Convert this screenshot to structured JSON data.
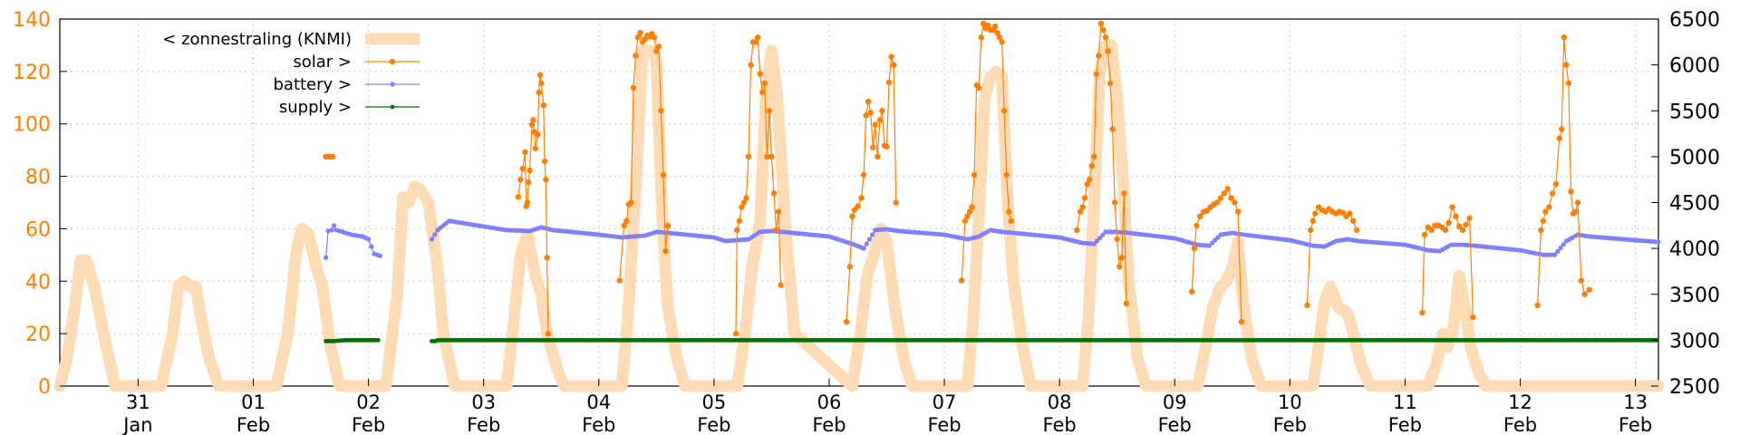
{
  "chart_data": {
    "type": "line",
    "title": "",
    "xlabel": "",
    "ylabel": "",
    "x_unit": "day",
    "xlim": [
      -0.68,
      13.2
    ],
    "ylim_left": [
      0,
      140
    ],
    "ylim_right": [
      2500,
      6500
    ],
    "left_ticks": [
      0,
      20,
      40,
      60,
      80,
      100,
      120,
      140
    ],
    "right_ticks": [
      2500,
      3000,
      3500,
      4000,
      4500,
      5000,
      5500,
      6000,
      6500
    ],
    "x_ticks": [
      {
        "pos": 0,
        "day": "31",
        "month": "Jan"
      },
      {
        "pos": 1,
        "day": "01",
        "month": "Feb"
      },
      {
        "pos": 2,
        "day": "02",
        "month": "Feb"
      },
      {
        "pos": 3,
        "day": "03",
        "month": "Feb"
      },
      {
        "pos": 4,
        "day": "04",
        "month": "Feb"
      },
      {
        "pos": 5,
        "day": "05",
        "month": "Feb"
      },
      {
        "pos": 6,
        "day": "06",
        "month": "Feb"
      },
      {
        "pos": 7,
        "day": "07",
        "month": "Feb"
      },
      {
        "pos": 8,
        "day": "08",
        "month": "Feb"
      },
      {
        "pos": 9,
        "day": "09",
        "month": "Feb"
      },
      {
        "pos": 10,
        "day": "10",
        "month": "Feb"
      },
      {
        "pos": 11,
        "day": "11",
        "month": "Feb"
      },
      {
        "pos": 12,
        "day": "12",
        "month": "Feb"
      },
      {
        "pos": 13,
        "day": "13",
        "month": "Feb"
      }
    ],
    "grid": true,
    "legend_position": "top-left",
    "colors": {
      "left_axis": "#ff7f00",
      "zonnestraling": "#ffdbb5",
      "solar": "#ff8000",
      "battery": "#7f7fff",
      "supply": "#007000"
    },
    "series": [
      {
        "name": "< zonnestraling (KNMI)",
        "axis": "left",
        "style": "thick-line",
        "x": [
          -0.68,
          -0.62,
          -0.55,
          -0.5,
          -0.45,
          -0.38,
          -0.3,
          -0.2,
          0.2,
          0.3,
          0.35,
          0.4,
          0.45,
          0.5,
          0.55,
          0.62,
          0.7,
          0.8,
          1.2,
          1.3,
          1.37,
          1.42,
          1.48,
          1.55,
          1.6,
          1.67,
          1.75,
          1.85,
          2.15,
          2.25,
          2.3,
          2.35,
          2.4,
          2.45,
          2.52,
          2.6,
          2.65,
          2.75,
          3.2,
          3.25,
          3.32,
          3.38,
          3.45,
          3.5,
          3.55,
          3.65,
          3.7,
          4.2,
          4.25,
          4.32,
          4.38,
          4.45,
          4.5,
          4.55,
          4.6,
          4.68,
          4.75,
          5.2,
          5.27,
          5.33,
          5.4,
          5.45,
          5.5,
          5.55,
          5.62,
          5.7,
          6.2,
          6.27,
          6.33,
          6.4,
          6.45,
          6.5,
          6.57,
          6.65,
          6.72,
          7.2,
          7.25,
          7.3,
          7.35,
          7.4,
          7.45,
          7.5,
          7.55,
          7.6,
          7.68,
          7.75,
          8.2,
          8.25,
          8.3,
          8.35,
          8.4,
          8.45,
          8.5,
          8.55,
          8.6,
          8.68,
          8.75,
          9.2,
          9.27,
          9.33,
          9.4,
          9.45,
          9.5,
          9.55,
          9.6,
          9.67,
          9.75,
          10.2,
          10.25,
          10.3,
          10.35,
          10.42,
          10.5,
          10.55,
          10.62,
          10.7,
          11.2,
          11.27,
          11.33,
          11.37,
          11.42,
          11.47,
          11.52,
          11.57,
          11.64,
          11.7,
          12.2,
          12.3,
          13.2
        ],
        "values": [
          0,
          10,
          30,
          48,
          48,
          38,
          20,
          0,
          0,
          20,
          38,
          40,
          38,
          38,
          25,
          10,
          0,
          0,
          0,
          20,
          50,
          60,
          58,
          45,
          38,
          15,
          0,
          0,
          0,
          35,
          72,
          70,
          76,
          75,
          70,
          45,
          20,
          0,
          0,
          20,
          50,
          58,
          42,
          35,
          20,
          5,
          0,
          0,
          25,
          75,
          128,
          128,
          125,
          65,
          30,
          10,
          0,
          0,
          20,
          45,
          62,
          110,
          128,
          110,
          60,
          20,
          0,
          20,
          42,
          52,
          60,
          55,
          30,
          10,
          0,
          0,
          25,
          65,
          110,
          118,
          120,
          118,
          70,
          40,
          15,
          0,
          0,
          25,
          70,
          120,
          130,
          130,
          110,
          80,
          40,
          10,
          0,
          0,
          15,
          30,
          38,
          40,
          45,
          55,
          30,
          10,
          0,
          0,
          15,
          32,
          38,
          30,
          28,
          20,
          8,
          0,
          0,
          8,
          20,
          15,
          22,
          42,
          30,
          15,
          5,
          0,
          0,
          0,
          0
        ]
      },
      {
        "name": "solar >",
        "axis": "right",
        "style": "line-points",
        "segments": [
          {
            "x": [
              1.63,
              1.66,
              1.69
            ],
            "values": [
              5000,
              5000,
              5000
            ]
          },
          {
            "x": [
              3.3,
              3.32,
              3.34,
              3.36,
              3.37,
              3.38,
              3.39,
              3.4,
              3.42,
              3.43,
              3.44,
              3.45,
              3.47,
              3.48,
              3.49,
              3.5,
              3.52,
              3.53,
              3.54,
              3.55,
              3.56
            ],
            "values": [
              4560,
              4750,
              4870,
              5050,
              4460,
              4500,
              4720,
              4850,
              5350,
              5400,
              5270,
              5090,
              5240,
              5700,
              5890,
              5800,
              5560,
              4950,
              4750,
              3900,
              3070
            ]
          },
          {
            "x": [
              4.18,
              4.22,
              4.24,
              4.26,
              4.28,
              4.3,
              4.32,
              4.34,
              4.36,
              4.38,
              4.4,
              4.42,
              4.44,
              4.46,
              4.48,
              4.5,
              4.52,
              4.54,
              4.56,
              4.58,
              4.6
            ],
            "values": [
              3650,
              4250,
              4300,
              4480,
              4500,
              5750,
              6100,
              6300,
              6350,
              6250,
              6280,
              6320,
              6310,
              6340,
              6300,
              6150,
              6200,
              5500,
              4800,
              3970,
              4250
            ]
          },
          {
            "x": [
              5.19,
              5.2,
              5.22,
              5.24,
              5.26,
              5.28,
              5.3,
              5.32,
              5.34,
              5.36,
              5.38,
              5.4,
              5.42,
              5.44,
              5.46,
              5.48,
              5.5,
              5.52,
              5.54,
              5.56,
              5.58
            ],
            "values": [
              3070,
              4200,
              4300,
              4450,
              4500,
              4550,
              5000,
              6000,
              6250,
              6250,
              6300,
              5900,
              5700,
              5800,
              5000,
              5500,
              5000,
              4600,
              4200,
              4400,
              3600
            ]
          },
          {
            "x": [
              6.15,
              6.18,
              6.2,
              6.22,
              6.25,
              6.28,
              6.3,
              6.32,
              6.34,
              6.36,
              6.38,
              6.4,
              6.42,
              6.44,
              6.46,
              6.48,
              6.5,
              6.52,
              6.54,
              6.56,
              6.58
            ],
            "values": [
              3200,
              3800,
              4350,
              4420,
              4460,
              4550,
              4800,
              5450,
              5600,
              5480,
              5100,
              5350,
              5000,
              5400,
              5500,
              5120,
              5110,
              5810,
              6090,
              6000,
              4500
            ]
          },
          {
            "x": [
              7.15,
              7.18,
              7.2,
              7.22,
              7.24,
              7.26,
              7.28,
              7.3,
              7.32,
              7.34,
              7.36,
              7.38,
              7.4,
              7.42,
              7.44,
              7.46,
              7.48,
              7.5,
              7.52,
              7.54,
              7.56,
              7.58
            ],
            "values": [
              3650,
              4300,
              4350,
              4400,
              4450,
              4800,
              5780,
              5750,
              6300,
              6450,
              6400,
              6430,
              6380,
              6380,
              6420,
              6350,
              6300,
              6250,
              5500,
              4800,
              4400,
              4300
            ]
          },
          {
            "x": [
              8.15,
              8.18,
              8.2,
              8.22,
              8.24,
              8.26,
              8.28,
              8.3,
              8.32,
              8.34,
              8.36,
              8.38,
              8.4,
              8.42,
              8.44,
              8.46,
              8.48,
              8.5,
              8.52,
              8.54,
              8.56,
              8.58
            ],
            "values": [
              4200,
              4400,
              4450,
              4550,
              4700,
              4750,
              4900,
              5000,
              5900,
              6100,
              6450,
              6380,
              6300,
              6150,
              5800,
              5300,
              4500,
              4100,
              3800,
              3900,
              4600,
              3400
            ]
          },
          {
            "x": [
              9.15,
              9.17,
              9.19,
              9.22,
              9.25,
              9.28,
              9.31,
              9.34,
              9.37,
              9.4,
              9.43,
              9.46,
              9.49,
              9.52,
              9.55,
              9.58
            ],
            "values": [
              3530,
              4000,
              4250,
              4350,
              4400,
              4410,
              4450,
              4480,
              4500,
              4550,
              4600,
              4650,
              4550,
              4500,
              4400,
              3200
            ]
          },
          {
            "x": [
              10.15,
              10.18,
              10.2,
              10.22,
              10.25,
              10.28,
              10.31,
              10.34,
              10.37,
              10.4,
              10.43,
              10.46,
              10.49,
              10.52,
              10.55,
              10.58
            ],
            "values": [
              3380,
              4200,
              4300,
              4380,
              4450,
              4420,
              4400,
              4430,
              4400,
              4380,
              4400,
              4390,
              4350,
              4380,
              4300,
              4200
            ]
          },
          {
            "x": [
              11.15,
              11.17,
              11.2,
              11.23,
              11.26,
              11.29,
              11.32,
              11.35,
              11.38,
              11.41,
              11.44,
              11.47,
              11.5,
              11.53,
              11.56,
              11.59
            ],
            "values": [
              3300,
              4150,
              4230,
              4200,
              4250,
              4250,
              4230,
              4200,
              4280,
              4450,
              4350,
              4240,
              4200,
              4260,
              4330,
              3250
            ]
          },
          {
            "x": [
              12.15,
              12.18,
              12.2,
              12.22,
              12.25,
              12.28,
              12.31,
              12.34,
              12.36,
              12.38,
              12.4,
              12.42,
              12.44,
              12.46,
              12.48,
              12.5,
              12.53,
              12.56,
              12.6
            ],
            "values": [
              3380,
              4200,
              4300,
              4400,
              4450,
              4600,
              4700,
              5200,
              5300,
              6300,
              6000,
              5800,
              4620,
              4380,
              4400,
              4500,
              3650,
              3500,
              3550
            ]
          }
        ]
      },
      {
        "name": "battery >",
        "axis": "right",
        "style": "line-points",
        "segments": [
          {
            "x": [
              1.63,
              1.65,
              1.68,
              1.7,
              1.72,
              1.75,
              1.8,
              1.85,
              1.9,
              1.95,
              2.0,
              2.05,
              2.1
            ],
            "values": [
              3900,
              4190,
              4200,
              4250,
              4200,
              4190,
              4170,
              4150,
              4140,
              4130,
              4100,
              3940,
              3920
            ]
          },
          {
            "x": [
              2.55,
              2.6,
              2.65,
              2.7,
              3.0,
              3.2,
              3.4,
              3.5,
              3.6,
              4.0,
              4.2,
              4.4,
              4.5,
              4.6,
              5.0,
              5.1,
              5.3,
              5.4,
              5.5,
              5.6,
              6.0,
              6.2,
              6.3,
              6.4,
              6.5,
              6.6,
              7.0,
              7.2,
              7.3,
              7.4,
              7.5,
              7.6,
              8.0,
              8.2,
              8.3,
              8.4,
              8.5,
              8.6,
              9.0,
              9.2,
              9.3,
              9.4,
              9.5,
              9.6,
              10.0,
              10.2,
              10.3,
              10.4,
              10.5,
              10.6,
              11.0,
              11.2,
              11.3,
              11.4,
              11.5,
              11.6,
              12.0,
              12.2,
              12.3,
              12.4,
              12.5,
              12.6,
              13.0,
              13.2
            ],
            "values": [
              4100,
              4200,
              4250,
              4300,
              4240,
              4200,
              4190,
              4230,
              4200,
              4150,
              4120,
              4140,
              4180,
              4170,
              4120,
              4080,
              4100,
              4180,
              4190,
              4180,
              4130,
              4050,
              4000,
              4200,
              4210,
              4190,
              4150,
              4100,
              4130,
              4200,
              4180,
              4170,
              4120,
              4060,
              4050,
              4180,
              4180,
              4170,
              4110,
              4040,
              4030,
              4150,
              4170,
              4150,
              4090,
              4030,
              4020,
              4080,
              4100,
              4080,
              4040,
              3980,
              3970,
              4040,
              4040,
              4030,
              3980,
              3930,
              3930,
              4080,
              4150,
              4130,
              4090,
              4070
            ]
          }
        ]
      },
      {
        "name": "supply >",
        "axis": "right",
        "style": "line-points",
        "segments": [
          {
            "x": [
              1.63,
              1.7,
              1.8,
              1.9,
              2.0,
              2.1
            ],
            "values": [
              2990,
              2990,
              3000,
              3000,
              3000,
              3000
            ]
          },
          {
            "x": [
              2.55,
              2.6
            ],
            "values": [
              2990,
              2990
            ]
          },
          {
            "x": [
              2.6,
              3.0,
              4.0,
              5.0,
              6.0,
              7.0,
              8.0,
              9.0,
              10.0,
              11.0,
              12.0,
              13.2
            ],
            "values": [
              3000,
              3000,
              3000,
              3000,
              3000,
              3000,
              3000,
              3000,
              3000,
              3000,
              3000,
              3000
            ]
          }
        ]
      }
    ]
  }
}
